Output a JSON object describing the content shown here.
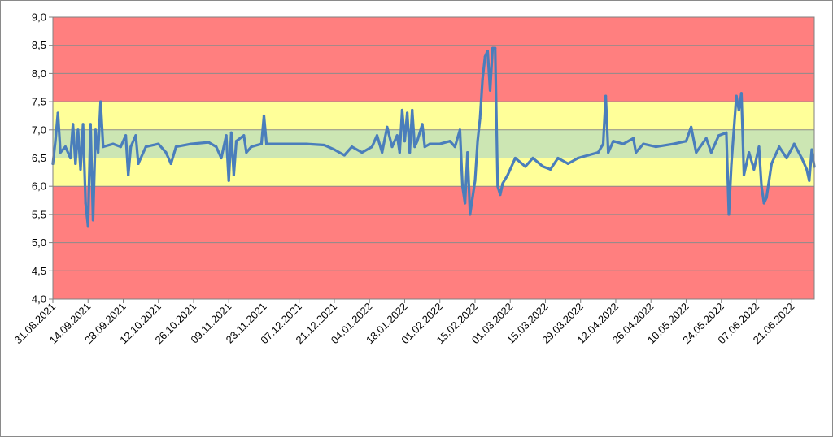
{
  "chart_data": {
    "type": "line",
    "title": "",
    "xlabel": "",
    "ylabel": "",
    "ylim": [
      4.0,
      9.0
    ],
    "grid": true,
    "legend": "none",
    "y_ticks": [
      "9,0",
      "8,5",
      "8,0",
      "7,5",
      "7,0",
      "6,5",
      "6,0",
      "5,5",
      "5,0",
      "4,5",
      "4,0"
    ],
    "x_ticks": [
      "31.08.2021",
      "14.09.2021",
      "28.09.2021",
      "12.10.2021",
      "26.10.2021",
      "09.11.2021",
      "23.11.2021",
      "07.12.2021",
      "21.12.2021",
      "04.01.2022",
      "18.01.2022",
      "01.02.2022",
      "15.02.2022",
      "01.03.2022",
      "15.03.2022",
      "29.03.2022",
      "12.04.2022",
      "26.04.2022",
      "10.05.2022",
      "24.05.2022",
      "07.06.2022",
      "21.06.2022"
    ],
    "x_range": [
      "31.08.2021",
      "30.06.2022"
    ],
    "bands": [
      {
        "from": 4.0,
        "to": 6.0,
        "color": "#ff7f7f"
      },
      {
        "from": 6.0,
        "to": 6.5,
        "color": "#ffff99"
      },
      {
        "from": 6.5,
        "to": 7.0,
        "color": "#cce6b3"
      },
      {
        "from": 7.0,
        "to": 7.5,
        "color": "#ffff99"
      },
      {
        "from": 7.5,
        "to": 9.0,
        "color": "#ff7f7f"
      }
    ],
    "series": [
      {
        "color": "#4a7ebb",
        "points": [
          [
            "31.08.2021",
            6.4
          ],
          [
            "01.09.2021",
            6.8
          ],
          [
            "02.09.2021",
            7.3
          ],
          [
            "03.09.2021",
            6.6
          ],
          [
            "05.09.2021",
            6.7
          ],
          [
            "07.09.2021",
            6.5
          ],
          [
            "08.09.2021",
            7.1
          ],
          [
            "09.09.2021",
            6.4
          ],
          [
            "10.09.2021",
            7.0
          ],
          [
            "11.09.2021",
            6.3
          ],
          [
            "12.09.2021",
            7.1
          ],
          [
            "13.09.2021",
            5.7
          ],
          [
            "14.09.2021",
            5.3
          ],
          [
            "15.09.2021",
            7.1
          ],
          [
            "16.09.2021",
            5.4
          ],
          [
            "17.09.2021",
            7.0
          ],
          [
            "18.09.2021",
            6.6
          ],
          [
            "19.09.2021",
            7.5
          ],
          [
            "20.09.2021",
            6.7
          ],
          [
            "24.09.2021",
            6.75
          ],
          [
            "27.09.2021",
            6.7
          ],
          [
            "29.09.2021",
            6.9
          ],
          [
            "30.09.2021",
            6.2
          ],
          [
            "01.10.2021",
            6.7
          ],
          [
            "03.10.2021",
            6.9
          ],
          [
            "04.10.2021",
            6.4
          ],
          [
            "07.10.2021",
            6.7
          ],
          [
            "12.10.2021",
            6.75
          ],
          [
            "15.10.2021",
            6.6
          ],
          [
            "17.10.2021",
            6.4
          ],
          [
            "19.10.2021",
            6.7
          ],
          [
            "25.10.2021",
            6.75
          ],
          [
            "01.11.2021",
            6.78
          ],
          [
            "04.11.2021",
            6.7
          ],
          [
            "06.11.2021",
            6.5
          ],
          [
            "08.11.2021",
            6.9
          ],
          [
            "09.11.2021",
            6.1
          ],
          [
            "10.11.2021",
            6.95
          ],
          [
            "11.11.2021",
            6.2
          ],
          [
            "12.11.2021",
            6.8
          ],
          [
            "15.11.2021",
            6.9
          ],
          [
            "16.11.2021",
            6.6
          ],
          [
            "18.11.2021",
            6.7
          ],
          [
            "22.11.2021",
            6.75
          ],
          [
            "23.11.2021",
            7.25
          ],
          [
            "24.11.2021",
            6.75
          ],
          [
            "01.12.2021",
            6.75
          ],
          [
            "10.12.2021",
            6.75
          ],
          [
            "17.12.2021",
            6.73
          ],
          [
            "21.12.2021",
            6.65
          ],
          [
            "25.12.2021",
            6.55
          ],
          [
            "28.12.2021",
            6.7
          ],
          [
            "01.01.2022",
            6.6
          ],
          [
            "05.01.2022",
            6.7
          ],
          [
            "07.01.2022",
            6.9
          ],
          [
            "09.01.2022",
            6.6
          ],
          [
            "11.01.2022",
            7.05
          ],
          [
            "13.01.2022",
            6.7
          ],
          [
            "15.01.2022",
            6.9
          ],
          [
            "16.01.2022",
            6.6
          ],
          [
            "17.01.2022",
            7.35
          ],
          [
            "18.01.2022",
            6.8
          ],
          [
            "19.01.2022",
            7.3
          ],
          [
            "20.01.2022",
            6.6
          ],
          [
            "21.01.2022",
            7.35
          ],
          [
            "22.01.2022",
            6.7
          ],
          [
            "23.01.2022",
            6.8
          ],
          [
            "25.01.2022",
            7.1
          ],
          [
            "26.01.2022",
            6.7
          ],
          [
            "28.01.2022",
            6.75
          ],
          [
            "01.02.2022",
            6.75
          ],
          [
            "05.02.2022",
            6.8
          ],
          [
            "07.02.2022",
            6.7
          ],
          [
            "09.02.2022",
            7.0
          ],
          [
            "10.02.2022",
            6.0
          ],
          [
            "11.02.2022",
            5.7
          ],
          [
            "12.02.2022",
            6.6
          ],
          [
            "13.02.2022",
            5.5
          ],
          [
            "14.02.2022",
            5.8
          ],
          [
            "15.02.2022",
            6.1
          ],
          [
            "16.02.2022",
            6.8
          ],
          [
            "17.02.2022",
            7.2
          ],
          [
            "18.02.2022",
            7.9
          ],
          [
            "19.02.2022",
            8.3
          ],
          [
            "20.02.2022",
            8.4
          ],
          [
            "21.02.2022",
            7.7
          ],
          [
            "22.02.2022",
            8.45
          ],
          [
            "23.02.2022",
            8.45
          ],
          [
            "24.02.2022",
            6.0
          ],
          [
            "25.02.2022",
            5.85
          ],
          [
            "26.02.2022",
            6.05
          ],
          [
            "28.02.2022",
            6.2
          ],
          [
            "03.03.2022",
            6.5
          ],
          [
            "07.03.2022",
            6.35
          ],
          [
            "10.03.2022",
            6.5
          ],
          [
            "14.03.2022",
            6.35
          ],
          [
            "17.03.2022",
            6.3
          ],
          [
            "20.03.2022",
            6.5
          ],
          [
            "24.03.2022",
            6.4
          ],
          [
            "28.03.2022",
            6.5
          ],
          [
            "01.04.2022",
            6.55
          ],
          [
            "05.04.2022",
            6.6
          ],
          [
            "07.04.2022",
            6.75
          ],
          [
            "08.04.2022",
            7.6
          ],
          [
            "09.04.2022",
            6.6
          ],
          [
            "11.04.2022",
            6.8
          ],
          [
            "15.04.2022",
            6.75
          ],
          [
            "19.04.2022",
            6.85
          ],
          [
            "20.04.2022",
            6.6
          ],
          [
            "23.04.2022",
            6.75
          ],
          [
            "28.04.2022",
            6.7
          ],
          [
            "05.05.2022",
            6.75
          ],
          [
            "10.05.2022",
            6.8
          ],
          [
            "12.05.2022",
            7.05
          ],
          [
            "14.05.2022",
            6.6
          ],
          [
            "18.05.2022",
            6.85
          ],
          [
            "20.05.2022",
            6.6
          ],
          [
            "23.05.2022",
            6.9
          ],
          [
            "26.05.2022",
            6.95
          ],
          [
            "27.05.2022",
            5.5
          ],
          [
            "28.05.2022",
            6.4
          ],
          [
            "30.05.2022",
            7.6
          ],
          [
            "31.05.2022",
            7.35
          ],
          [
            "01.06.2022",
            7.65
          ],
          [
            "02.06.2022",
            6.2
          ],
          [
            "04.06.2022",
            6.6
          ],
          [
            "06.06.2022",
            6.3
          ],
          [
            "08.06.2022",
            6.7
          ],
          [
            "09.06.2022",
            6.0
          ],
          [
            "10.06.2022",
            5.7
          ],
          [
            "11.06.2022",
            5.8
          ],
          [
            "13.06.2022",
            6.4
          ],
          [
            "16.06.2022",
            6.7
          ],
          [
            "19.06.2022",
            6.5
          ],
          [
            "22.06.2022",
            6.75
          ],
          [
            "25.06.2022",
            6.5
          ],
          [
            "27.06.2022",
            6.3
          ],
          [
            "28.06.2022",
            6.1
          ],
          [
            "29.06.2022",
            6.65
          ],
          [
            "30.06.2022",
            6.35
          ]
        ]
      }
    ]
  }
}
